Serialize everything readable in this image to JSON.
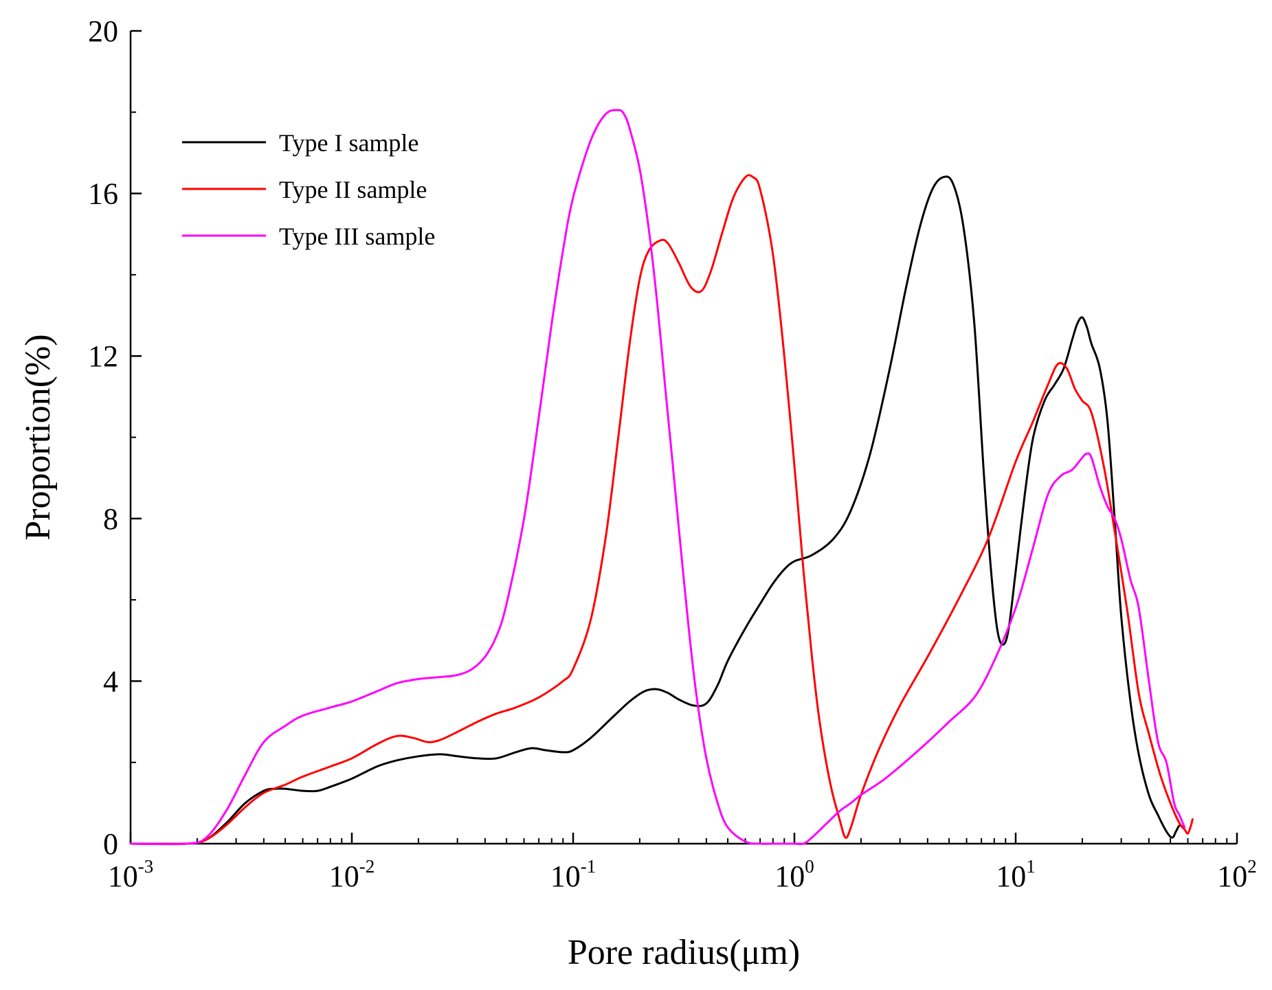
{
  "chart_data": {
    "type": "line",
    "title": "",
    "xlabel": "Pore radius(μm)",
    "ylabel": "Proportion(%)",
    "x_scale": "log",
    "xlim": [
      0.001,
      100
    ],
    "ylim": [
      0,
      20
    ],
    "x_ticks": [
      {
        "value": 0.001,
        "base": "10",
        "exp": "-3"
      },
      {
        "value": 0.01,
        "base": "10",
        "exp": "-2"
      },
      {
        "value": 0.1,
        "base": "10",
        "exp": "-1"
      },
      {
        "value": 1,
        "base": "10",
        "exp": "0"
      },
      {
        "value": 10,
        "base": "10",
        "exp": "1"
      },
      {
        "value": 100,
        "base": "10",
        "exp": "2"
      }
    ],
    "y_ticks": [
      {
        "value": 0,
        "label": "0"
      },
      {
        "value": 4,
        "label": "4"
      },
      {
        "value": 8,
        "label": "8"
      },
      {
        "value": 12,
        "label": "12"
      },
      {
        "value": 16,
        "label": "16"
      },
      {
        "value": 20,
        "label": "20"
      }
    ],
    "legend_position": "top-left",
    "grid": false,
    "series": [
      {
        "name": "Type I sample",
        "color": "#000000",
        "x": [
          0.001,
          0.0018,
          0.0022,
          0.0027,
          0.0033,
          0.004,
          0.0045,
          0.005,
          0.006,
          0.007,
          0.008,
          0.01,
          0.013,
          0.016,
          0.02,
          0.025,
          0.03,
          0.037,
          0.045,
          0.055,
          0.065,
          0.075,
          0.09,
          0.1,
          0.12,
          0.15,
          0.18,
          0.21,
          0.24,
          0.27,
          0.3,
          0.35,
          0.4,
          0.45,
          0.5,
          0.6,
          0.7,
          0.8,
          0.9,
          1.0,
          1.2,
          1.5,
          1.8,
          2.2,
          2.7,
          3.2,
          3.7,
          4.2,
          4.7,
          5.2,
          5.8,
          6.5,
          7.2,
          7.8,
          8.3,
          8.8,
          9.3,
          10,
          11,
          12,
          13.5,
          15,
          16.5,
          18,
          19,
          20,
          21,
          22,
          24,
          26,
          28,
          30,
          33,
          36,
          40,
          44,
          48,
          51,
          53,
          55,
          57
        ],
        "y": [
          0,
          0,
          0.1,
          0.5,
          1.0,
          1.3,
          1.35,
          1.35,
          1.3,
          1.3,
          1.4,
          1.6,
          1.9,
          2.05,
          2.15,
          2.2,
          2.15,
          2.1,
          2.1,
          2.25,
          2.35,
          2.3,
          2.25,
          2.3,
          2.6,
          3.1,
          3.5,
          3.75,
          3.8,
          3.7,
          3.55,
          3.4,
          3.45,
          3.9,
          4.5,
          5.3,
          5.9,
          6.4,
          6.75,
          6.95,
          7.1,
          7.5,
          8.2,
          9.6,
          11.7,
          13.7,
          15.2,
          16.1,
          16.4,
          16.25,
          15.2,
          12.8,
          9.0,
          6.5,
          5.2,
          4.9,
          5.3,
          6.7,
          8.6,
          10.0,
          10.9,
          11.3,
          11.7,
          12.4,
          12.8,
          12.95,
          12.7,
          12.3,
          11.7,
          10.4,
          8.0,
          5.6,
          3.5,
          2.2,
          1.2,
          0.7,
          0.3,
          0.15,
          0.3,
          0.45,
          0.4
        ]
      },
      {
        "name": "Type II sample",
        "color": "#ff0000",
        "x": [
          0.001,
          0.0018,
          0.0022,
          0.0027,
          0.0033,
          0.004,
          0.005,
          0.006,
          0.008,
          0.01,
          0.013,
          0.016,
          0.019,
          0.022,
          0.025,
          0.03,
          0.037,
          0.045,
          0.055,
          0.07,
          0.09,
          0.1,
          0.12,
          0.14,
          0.16,
          0.18,
          0.2,
          0.22,
          0.25,
          0.27,
          0.3,
          0.34,
          0.38,
          0.42,
          0.47,
          0.53,
          0.6,
          0.65,
          0.7,
          0.8,
          0.9,
          1.0,
          1.1,
          1.2,
          1.3,
          1.45,
          1.6,
          1.7,
          1.8,
          2.0,
          2.4,
          3.0,
          4.0,
          5.5,
          7.5,
          10,
          12,
          14,
          15.5,
          17,
          18.5,
          20,
          22,
          25,
          28,
          32,
          36,
          40,
          45,
          50,
          55,
          58,
          60,
          62,
          63
        ],
        "y": [
          0,
          0,
          0.1,
          0.45,
          0.9,
          1.25,
          1.45,
          1.65,
          1.9,
          2.1,
          2.45,
          2.65,
          2.6,
          2.5,
          2.55,
          2.75,
          3.0,
          3.2,
          3.35,
          3.6,
          4.0,
          4.3,
          5.5,
          7.5,
          10.0,
          12.3,
          13.9,
          14.6,
          14.85,
          14.75,
          14.3,
          13.7,
          13.6,
          14.1,
          15.0,
          15.9,
          16.4,
          16.4,
          16.1,
          14.5,
          12.0,
          9.3,
          6.7,
          4.6,
          3.0,
          1.5,
          0.6,
          0.15,
          0.4,
          1.2,
          2.3,
          3.4,
          4.6,
          6.0,
          7.5,
          9.4,
          10.4,
          11.3,
          11.8,
          11.7,
          11.2,
          10.9,
          10.6,
          9.3,
          7.7,
          5.7,
          3.7,
          2.7,
          1.7,
          1.0,
          0.5,
          0.35,
          0.25,
          0.45,
          0.6
        ]
      },
      {
        "name": "Type III sample",
        "color": "#ff00ff",
        "x": [
          0.001,
          0.0018,
          0.0022,
          0.0027,
          0.0033,
          0.004,
          0.005,
          0.006,
          0.008,
          0.01,
          0.013,
          0.016,
          0.02,
          0.025,
          0.03,
          0.035,
          0.04,
          0.045,
          0.05,
          0.06,
          0.07,
          0.08,
          0.09,
          0.1,
          0.12,
          0.14,
          0.16,
          0.17,
          0.18,
          0.2,
          0.22,
          0.24,
          0.26,
          0.28,
          0.3,
          0.33,
          0.36,
          0.4,
          0.45,
          0.5,
          0.6,
          0.7,
          0.8,
          0.9,
          1.0,
          1.1,
          1.2,
          1.4,
          1.6,
          1.8,
          2.0,
          2.5,
          3.0,
          4.0,
          5.0,
          6.5,
          8.0,
          10,
          12,
          14,
          16,
          18,
          20,
          21,
          22,
          24,
          26,
          28,
          30,
          33,
          36,
          40,
          44,
          48,
          52,
          55,
          58
        ],
        "y": [
          0,
          0,
          0.15,
          0.8,
          1.7,
          2.5,
          2.9,
          3.15,
          3.35,
          3.5,
          3.75,
          3.95,
          4.05,
          4.1,
          4.15,
          4.3,
          4.6,
          5.1,
          5.9,
          8.0,
          10.5,
          12.8,
          14.6,
          15.9,
          17.3,
          17.95,
          18.05,
          17.95,
          17.6,
          16.6,
          15.1,
          13.3,
          11.3,
          9.5,
          7.8,
          5.5,
          3.7,
          2.1,
          1.0,
          0.4,
          0.05,
          0,
          0,
          0,
          0,
          0,
          0.15,
          0.5,
          0.8,
          1.0,
          1.2,
          1.55,
          1.9,
          2.5,
          3.0,
          3.6,
          4.5,
          5.8,
          7.3,
          8.6,
          9.05,
          9.2,
          9.5,
          9.6,
          9.5,
          8.8,
          8.3,
          8.0,
          7.5,
          6.5,
          5.8,
          4.0,
          2.5,
          2.0,
          1.0,
          0.7,
          0.4
        ]
      }
    ]
  }
}
